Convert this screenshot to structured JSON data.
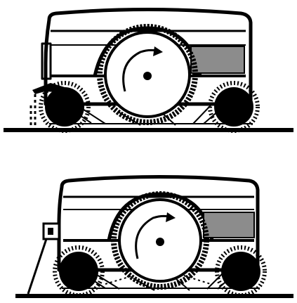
{
  "diagram": {
    "panels": [
      {
        "id": "top",
        "variant": "front-brush-lowered",
        "parts": [
          "ground-line",
          "vehicle-body",
          "hopper-compartment",
          "main-brush-drum",
          "rotation-arrow",
          "hub",
          "front-side-brush",
          "rear-side-brush",
          "dust-particles",
          "front-flap"
        ]
      },
      {
        "id": "bottom",
        "variant": "front-flap-raised",
        "parts": [
          "ground-line",
          "vehicle-body",
          "hopper-compartment",
          "main-brush-drum",
          "rotation-arrow",
          "hub",
          "front-side-brush",
          "rear-side-brush",
          "dust-particles",
          "front-flap"
        ]
      }
    ],
    "colors": {
      "ink": "#000000",
      "background": "#ffffff",
      "hopper-fill": "#8c8c8c"
    }
  }
}
